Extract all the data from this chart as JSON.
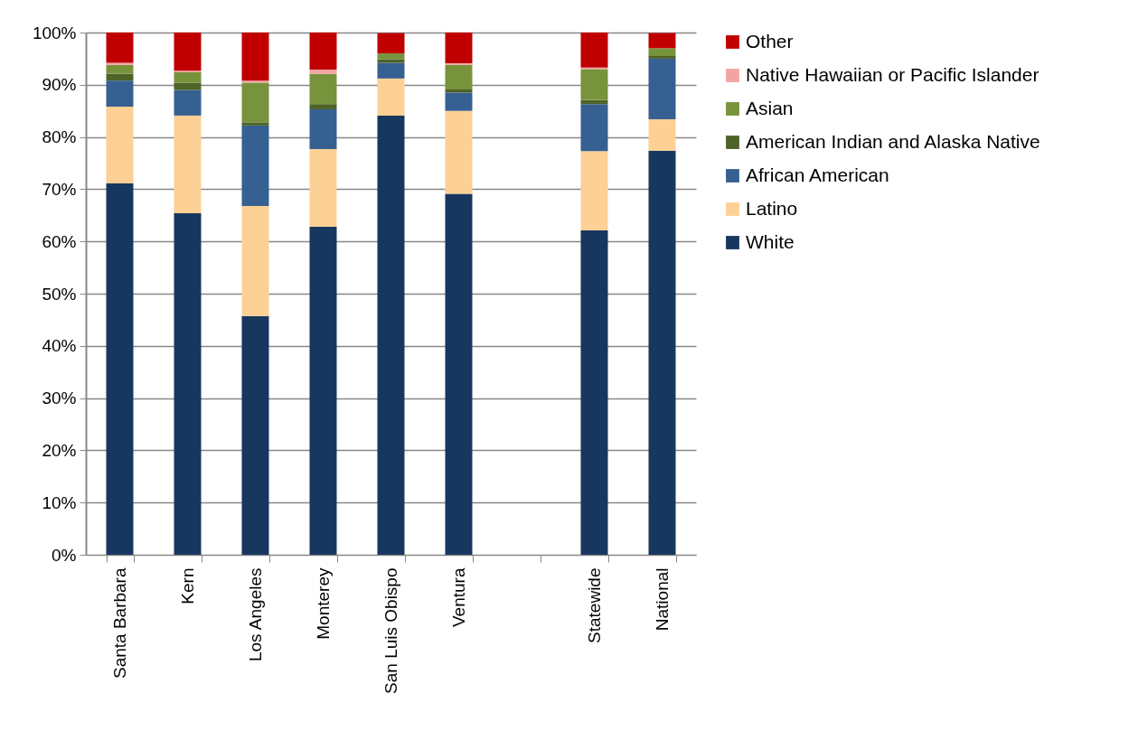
{
  "chart_data": {
    "type": "bar",
    "stacked": true,
    "categories": [
      "Santa Barbara",
      "Kern",
      "Los Angeles",
      "Monterey",
      "San Luis Obispo",
      "Ventura",
      null,
      "Statewide",
      "National"
    ],
    "series": [
      {
        "name": "White",
        "color": "#17375e",
        "values": [
          71.1,
          65.4,
          45.7,
          62.8,
          84.1,
          69.1,
          null,
          62.1,
          77.4
        ]
      },
      {
        "name": "Latino",
        "color": "#fdd096",
        "values": [
          14.7,
          18.7,
          21.1,
          14.9,
          7.1,
          15.9,
          null,
          15.2,
          6.0
        ]
      },
      {
        "name": "African American",
        "color": "#376092",
        "values": [
          5.0,
          4.9,
          15.4,
          7.6,
          3.0,
          3.5,
          null,
          9.0,
          11.6
        ]
      },
      {
        "name": "American Indian and Alaska Native",
        "color": "#4f6228",
        "values": [
          1.3,
          1.4,
          0.6,
          1.0,
          0.7,
          0.6,
          null,
          0.8,
          0.5
        ]
      },
      {
        "name": "Asian",
        "color": "#77933c",
        "values": [
          1.7,
          2.0,
          7.6,
          5.8,
          1.1,
          4.7,
          null,
          5.9,
          1.5
        ]
      },
      {
        "name": "Native Hawaiian or Pacific Islander",
        "color": "#f4a3a3",
        "values": [
          0.4,
          0.3,
          0.4,
          0.8,
          null,
          0.3,
          null,
          0.3,
          null
        ]
      },
      {
        "name": "Other",
        "color": "#c00000",
        "values": [
          5.8,
          7.3,
          9.2,
          7.1,
          3.9,
          5.9,
          null,
          6.7,
          2.9
        ]
      }
    ],
    "ylim": [
      0,
      100
    ],
    "yticks": [
      {
        "value": 0,
        "label": "0%"
      },
      {
        "value": 10,
        "label": "10%"
      },
      {
        "value": 20,
        "label": "20%"
      },
      {
        "value": 30,
        "label": "30%"
      },
      {
        "value": 40,
        "label": "40%"
      },
      {
        "value": 50,
        "label": "50%"
      },
      {
        "value": 60,
        "label": "60%"
      },
      {
        "value": 70,
        "label": "70%"
      },
      {
        "value": 80,
        "label": "80%"
      },
      {
        "value": 90,
        "label": "90%"
      },
      {
        "value": 100,
        "label": "100%"
      }
    ],
    "grid": "y",
    "legend": "right"
  }
}
